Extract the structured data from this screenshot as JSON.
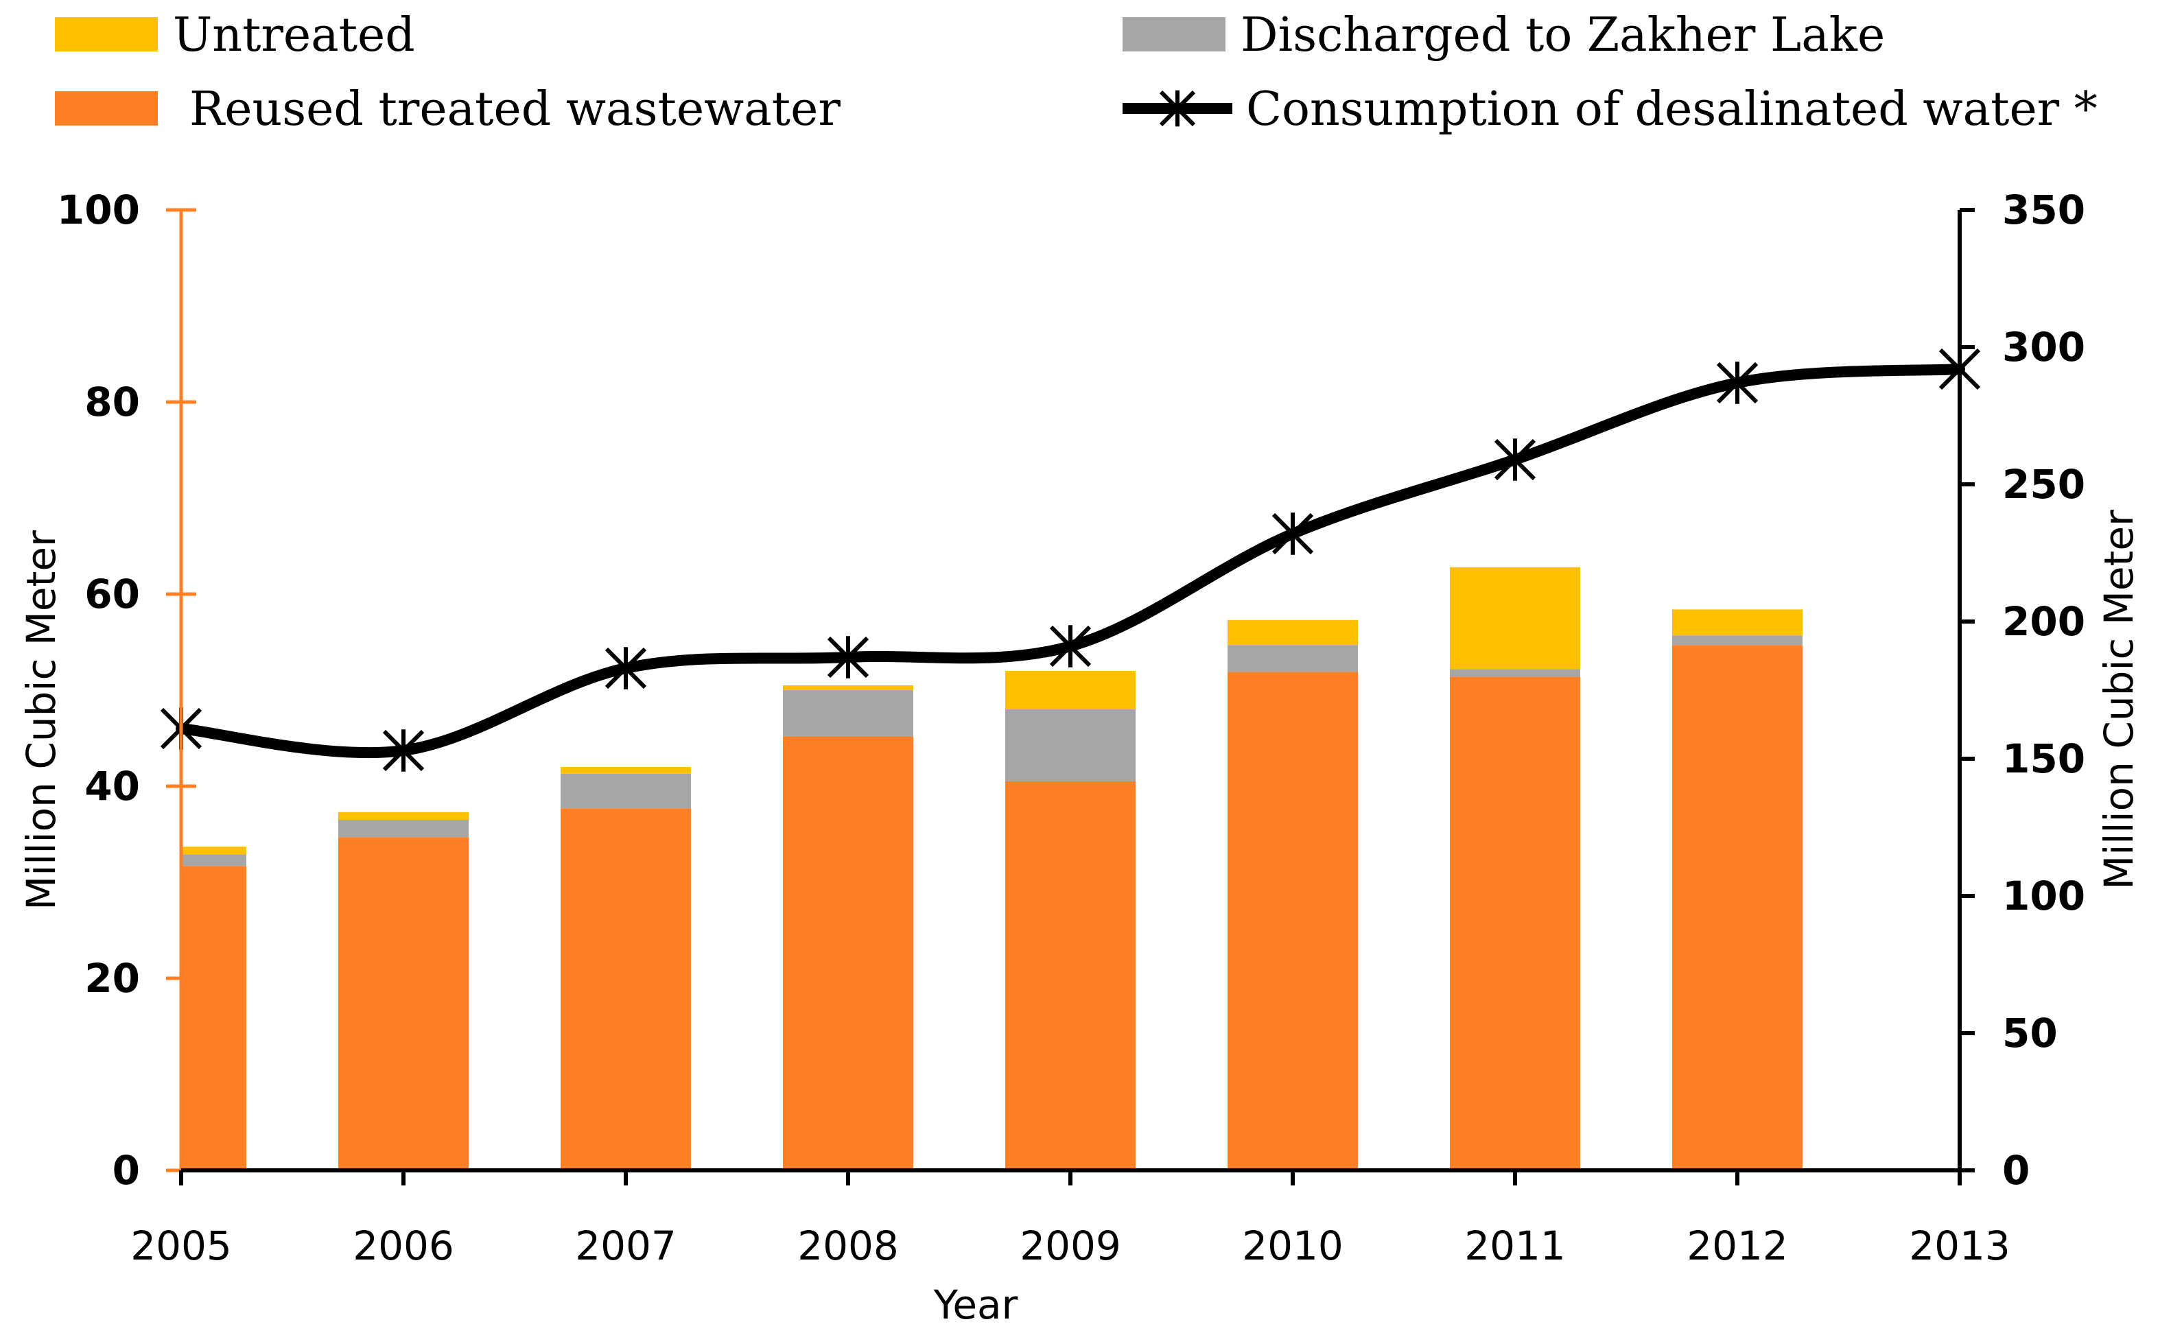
{
  "chart_data": {
    "type": "bar",
    "stacked": true,
    "x_title": "Year",
    "y_left_title": "Million Cubic Meter",
    "y_right_title": "Million Cubic Meter",
    "y_left_range": [
      0,
      100
    ],
    "y_left_ticks": [
      0,
      20,
      40,
      60,
      80,
      100
    ],
    "y_right_range": [
      0,
      350
    ],
    "y_right_ticks": [
      0,
      50,
      100,
      150,
      200,
      250,
      300,
      350
    ],
    "x_ticks": [
      "2005",
      "2006",
      "2007",
      "2008",
      "2009",
      "2010",
      "2011",
      "2012",
      "2013"
    ],
    "categories": [
      "2005",
      "2006",
      "2007",
      "2008",
      "2009",
      "2010",
      "2011",
      "2012"
    ],
    "series": [
      {
        "name": "Reused treated wastewater",
        "color": "#FF7F27",
        "axis": "left",
        "values": [
          31.7,
          34.7,
          37.7,
          45.2,
          40.5,
          51.9,
          51.4,
          54.7
        ]
      },
      {
        "name": "Discharged to Zakher Lake",
        "color": "#A6A6A6",
        "axis": "left",
        "values": [
          1.2,
          1.8,
          3.6,
          4.8,
          7.5,
          2.8,
          0.8,
          1.0
        ]
      },
      {
        "name": "Untreated",
        "color": "#FFC000",
        "axis": "left",
        "values": [
          0.8,
          0.8,
          0.7,
          0.5,
          4.0,
          2.6,
          10.6,
          2.7
        ]
      }
    ],
    "line_series": {
      "name": "Consumption of desalinated water *",
      "color": "#000000",
      "axis": "right",
      "marker": "asterisk",
      "x": [
        "2005",
        "2006",
        "2007",
        "2008",
        "2009",
        "2010",
        "2011",
        "2012",
        "2013"
      ],
      "values": [
        161,
        153,
        183,
        187,
        191,
        232,
        259,
        287,
        292
      ]
    },
    "legend": {
      "position": "top",
      "entries": [
        {
          "label": "Untreated",
          "color": "#FFC000",
          "kind": "box"
        },
        {
          "label": "Discharged to Zakher Lake",
          "color": "#A6A6A6",
          "kind": "box"
        },
        {
          "label": "Reused treated wastewater",
          "color": "#FF7F27",
          "kind": "box"
        },
        {
          "label": "Consumption of desalinated water *",
          "color": "#000000",
          "kind": "line-marker"
        }
      ]
    },
    "left_axis_color": "#FF7F27",
    "right_axis_color": "#000000"
  }
}
